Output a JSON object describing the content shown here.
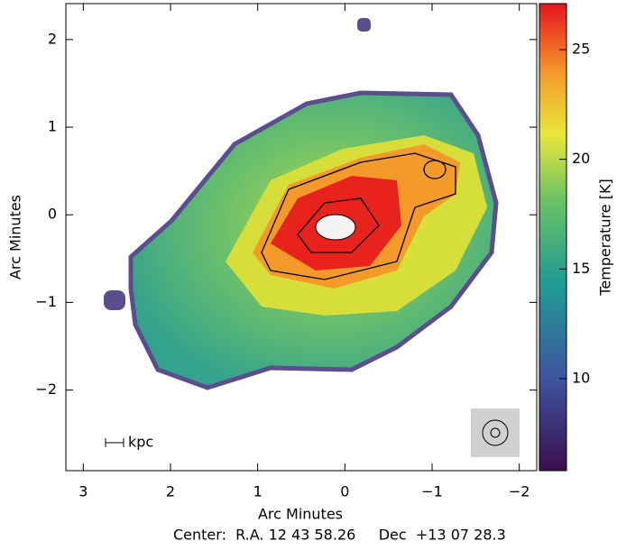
{
  "chart_data": {
    "type": "image",
    "xlabel": "Arc Minutes",
    "ylabel": "Arc Minutes",
    "xlim": [
      3.2,
      -2.2
    ],
    "ylim": [
      -2.92,
      2.41
    ],
    "xticks": [
      3,
      2,
      1,
      0,
      {
        "value": -1,
        "label": "−1"
      },
      {
        "value": -2,
        "label": "−2"
      }
    ],
    "yticks": [
      {
        "value": -2,
        "label": "−2"
      },
      {
        "value": -1,
        "label": "−1"
      },
      0,
      1,
      2
    ],
    "colorbar": {
      "label": "Temperature [K]",
      "lim": [
        5.8,
        27.1
      ],
      "ticks": [
        10,
        15,
        20,
        25
      ]
    },
    "scale_bar_label": "kpc",
    "footer": "Center:  R.A. 12 43 58.26     Dec  +13 07 28.3"
  }
}
